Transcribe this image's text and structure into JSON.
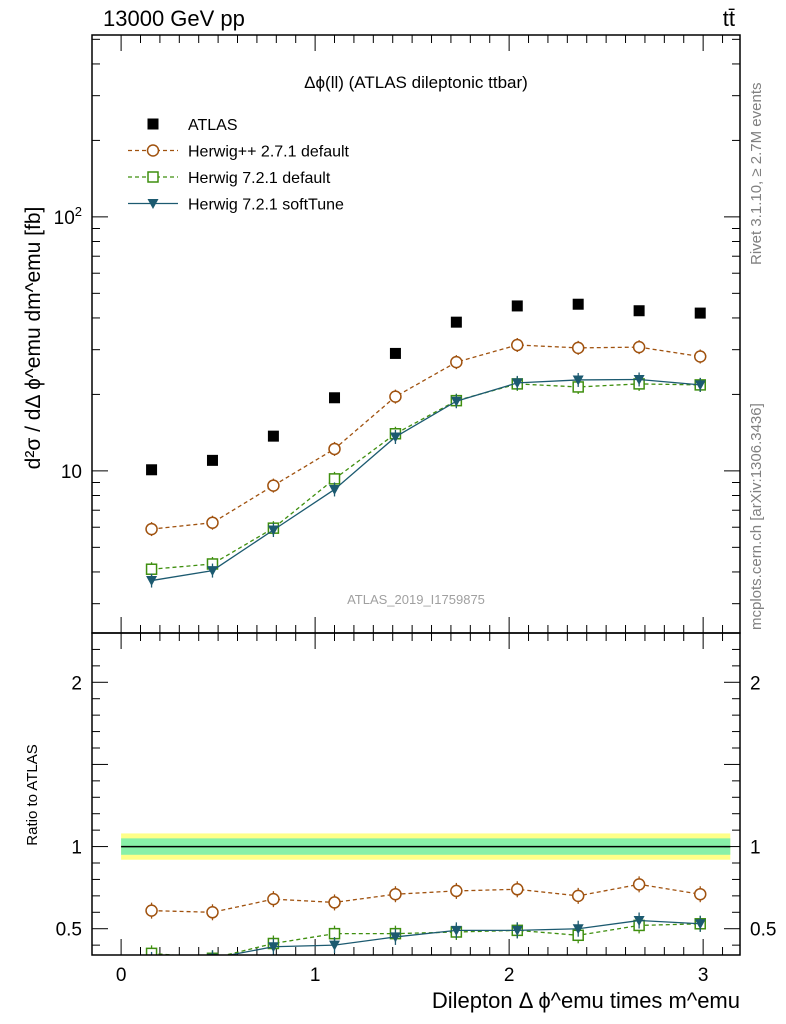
{
  "header": {
    "left": "13000 GeV pp",
    "right": "tt̄"
  },
  "side_labels": {
    "top": "Rivet 3.1.10, ≥ 2.7M events",
    "bottom": "mcplots.cern.ch [arXiv:1306.3436]"
  },
  "chart_data": [
    {
      "type": "scatter",
      "title": "Δϕ(ll) (ATLAS dileptonic ttbar)",
      "watermark": "ATLAS_2019_I1759875",
      "ylabel": "d²σ / dΔ ϕ^emu dm^emu [fb]",
      "yscale": "log",
      "xlim": [
        -0.15,
        3.19
      ],
      "ylim": [
        2.3,
        520
      ],
      "yticks": [
        {
          "value": 10,
          "label": "10"
        },
        {
          "value": 100,
          "label": "10²"
        }
      ],
      "legend_position": "top-left",
      "x": [
        0.157,
        0.471,
        0.785,
        1.1,
        1.414,
        1.728,
        2.042,
        2.356,
        2.67,
        2.985
      ],
      "series": [
        {
          "name": "ATLAS",
          "color": "#000000",
          "marker": "filled-square",
          "line": "none",
          "values": [
            10.1,
            11.0,
            13.7,
            19.4,
            29.0,
            38.5,
            44.6,
            45.3,
            42.7,
            41.8
          ]
        },
        {
          "name": "Herwig++ 2.7.1 default",
          "color": "#a0520f",
          "marker": "open-circle",
          "line": "dashed",
          "values": [
            5.9,
            6.25,
            8.75,
            12.2,
            19.6,
            26.8,
            31.3,
            30.5,
            30.7,
            28.2
          ]
        },
        {
          "name": "Herwig 7.2.1 default",
          "color": "#3f8f0f",
          "marker": "open-square",
          "line": "dashed",
          "values": [
            4.1,
            4.3,
            5.95,
            9.3,
            14.0,
            18.9,
            22.0,
            21.4,
            22.0,
            21.8
          ]
        },
        {
          "name": "Herwig 7.2.1 softTune",
          "color": "#1c5a70",
          "marker": "filled-triangle-down",
          "line": "solid",
          "values": [
            3.7,
            4.05,
            5.85,
            8.45,
            13.6,
            18.8,
            22.2,
            22.8,
            22.9,
            21.8
          ]
        }
      ]
    },
    {
      "type": "scatter",
      "ylabel": "Ratio to ATLAS",
      "xlabel": "Dilepton Δ ϕ^emu times m^emu",
      "xlim": [
        -0.15,
        3.19
      ],
      "ylim": [
        0.34,
        2.3
      ],
      "yticks": [
        {
          "value": 0.5,
          "label": "0.5"
        },
        {
          "value": 1,
          "label": "1"
        },
        {
          "value": 2,
          "label": "2"
        }
      ],
      "xticks": [
        {
          "value": 0,
          "label": "0"
        },
        {
          "value": 1,
          "label": "1"
        },
        {
          "value": 2,
          "label": "2"
        },
        {
          "value": 3,
          "label": "3"
        }
      ],
      "band_inner": [
        0.95,
        1.05
      ],
      "band_outer": [
        0.92,
        1.08
      ],
      "x": [
        0.157,
        0.471,
        0.785,
        1.1,
        1.414,
        1.728,
        2.042,
        2.356,
        2.67,
        2.985
      ],
      "series": [
        {
          "name": "Herwig++ 2.7.1 default",
          "color": "#a0520f",
          "marker": "open-circle",
          "line": "dashed",
          "values": [
            0.61,
            0.6,
            0.68,
            0.66,
            0.71,
            0.73,
            0.74,
            0.7,
            0.77,
            0.71
          ]
        },
        {
          "name": "Herwig 7.2.1 default",
          "color": "#3f8f0f",
          "marker": "open-square",
          "line": "dashed",
          "values": [
            0.35,
            0.32,
            0.41,
            0.47,
            0.47,
            0.48,
            0.49,
            0.46,
            0.52,
            0.53
          ]
        },
        {
          "name": "Herwig 7.2.1 softTune",
          "color": "#1c5a70",
          "marker": "filled-triangle-down",
          "line": "solid",
          "values": [
            0.31,
            0.32,
            0.39,
            0.4,
            0.45,
            0.49,
            0.49,
            0.5,
            0.55,
            0.53
          ]
        }
      ]
    }
  ]
}
